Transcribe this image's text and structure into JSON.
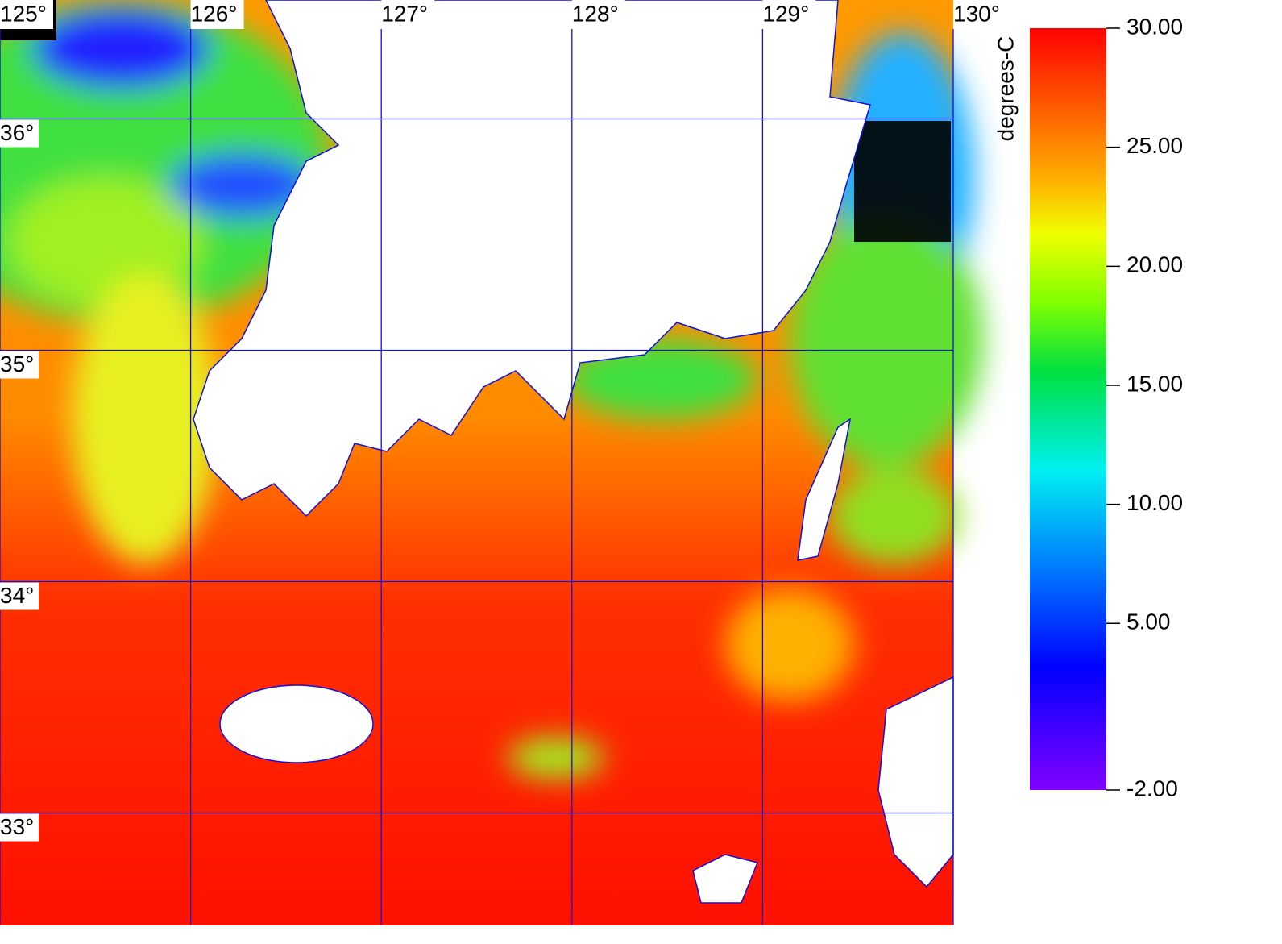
{
  "map": {
    "lonlim": [
      125,
      130
    ],
    "latlim": [
      32.514,
      36.514
    ],
    "lon_labels": [
      {
        "value": 125,
        "label": "125°"
      },
      {
        "value": 126,
        "label": "126°"
      },
      {
        "value": 127,
        "label": "127°"
      },
      {
        "value": 128,
        "label": "128°"
      },
      {
        "value": 129,
        "label": "129°"
      },
      {
        "value": 130,
        "label": "130°"
      }
    ],
    "lat_labels": [
      {
        "value": 36,
        "label": "36°"
      },
      {
        "value": 35,
        "label": "35°"
      },
      {
        "value": 34,
        "label": "34°"
      },
      {
        "value": 33,
        "label": "33°"
      }
    ],
    "colorbar": {
      "title": "degrees-C",
      "range": [
        -2,
        30
      ],
      "ticks": [
        {
          "value": 30,
          "label": "30.00"
        },
        {
          "value": 25,
          "label": "25.00"
        },
        {
          "value": 20,
          "label": "20.00"
        },
        {
          "value": 15,
          "label": "15.00"
        },
        {
          "value": 10,
          "label": "10.00"
        },
        {
          "value": 5,
          "label": "5.00"
        },
        {
          "value": -2,
          "label": "-2.00"
        }
      ]
    }
  }
}
